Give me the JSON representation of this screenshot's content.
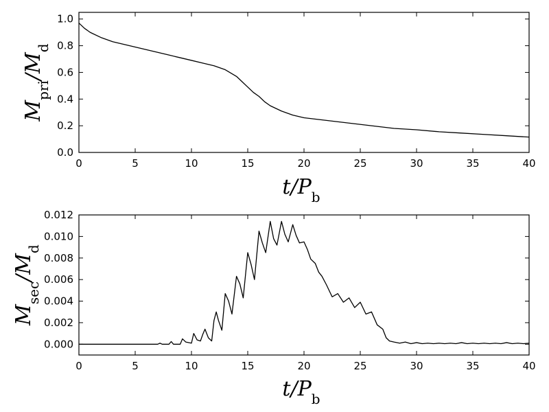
{
  "chart_data": [
    {
      "type": "line",
      "xlabel": {
        "main": "t/P",
        "sub": "b"
      },
      "ylabel": {
        "main": "M",
        "sub": "pri",
        "tail": "/M",
        "sub2": "d"
      },
      "xlim": [
        0,
        40
      ],
      "ylim": [
        0,
        1.05
      ],
      "xticks": [
        "0",
        "5",
        "10",
        "15",
        "20",
        "25",
        "30",
        "35",
        "40"
      ],
      "yticks": [
        "0.0",
        "0.2",
        "0.4",
        "0.6",
        "0.8",
        "1.0"
      ],
      "grid": false,
      "series": [
        {
          "x": [
            0,
            0.5,
            1,
            2,
            3,
            4,
            5,
            6,
            7,
            8,
            9,
            10,
            11,
            12,
            13,
            14,
            14.5,
            15,
            15.5,
            16,
            16.5,
            17,
            17.5,
            18,
            19,
            20,
            22,
            24,
            26,
            28,
            30,
            32,
            34,
            36,
            38,
            40
          ],
          "y": [
            0.97,
            0.93,
            0.9,
            0.86,
            0.83,
            0.81,
            0.79,
            0.77,
            0.75,
            0.73,
            0.71,
            0.69,
            0.67,
            0.65,
            0.62,
            0.57,
            0.53,
            0.49,
            0.45,
            0.42,
            0.38,
            0.35,
            0.33,
            0.31,
            0.28,
            0.26,
            0.24,
            0.22,
            0.2,
            0.18,
            0.17,
            0.155,
            0.145,
            0.135,
            0.125,
            0.115
          ]
        }
      ]
    },
    {
      "type": "line",
      "xlabel": {
        "main": "t/P",
        "sub": "b"
      },
      "ylabel": {
        "main": "M",
        "sub": "sec",
        "tail": "/M",
        "sub2": "d"
      },
      "xlim": [
        0,
        40
      ],
      "ylim": [
        -0.001,
        0.012
      ],
      "xticks": [
        "0",
        "5",
        "10",
        "15",
        "20",
        "25",
        "30",
        "35",
        "40"
      ],
      "yticks": [
        "0.000",
        "0.002",
        "0.004",
        "0.006",
        "0.008",
        "0.010",
        "0.012"
      ],
      "grid": false,
      "series": [
        {
          "x": [
            0,
            6,
            7,
            7.2,
            7.4,
            8,
            8.2,
            8.4,
            9,
            9.2,
            9.5,
            10,
            10.2,
            10.5,
            10.8,
            11,
            11.2,
            11.5,
            11.8,
            12,
            12.2,
            12.4,
            12.7,
            13,
            13.3,
            13.6,
            14,
            14.3,
            14.6,
            15,
            15.3,
            15.6,
            16,
            16.3,
            16.6,
            17,
            17.3,
            17.6,
            18,
            18.3,
            18.6,
            19,
            19.3,
            19.6,
            20,
            20.3,
            20.6,
            21,
            21.3,
            21.6,
            22,
            22.5,
            23,
            23.5,
            24,
            24.5,
            25,
            25.5,
            26,
            26.5,
            27,
            27.3,
            27.6,
            28,
            28.5,
            29,
            29.5,
            30,
            30.5,
            31,
            31.5,
            32,
            32.5,
            33,
            33.5,
            34,
            34.5,
            35,
            35.5,
            36,
            36.5,
            37,
            37.5,
            38,
            38.5,
            39,
            39.5,
            40
          ],
          "y": [
            0,
            0,
            0,
            0.0001,
            0,
            0,
            0.00025,
            0,
            0,
            0.0005,
            0.0002,
            0.0001,
            0.001,
            0.0004,
            0.0003,
            0.0009,
            0.0014,
            0.0006,
            0.0003,
            0.0022,
            0.003,
            0.0022,
            0.0013,
            0.0047,
            0.004,
            0.0028,
            0.0063,
            0.0056,
            0.0043,
            0.0085,
            0.0074,
            0.006,
            0.0105,
            0.0094,
            0.0085,
            0.0114,
            0.0098,
            0.0092,
            0.0114,
            0.0102,
            0.0095,
            0.0111,
            0.0101,
            0.0094,
            0.0095,
            0.0088,
            0.0079,
            0.0075,
            0.0067,
            0.0063,
            0.0055,
            0.0044,
            0.0047,
            0.0039,
            0.0043,
            0.0034,
            0.0039,
            0.0028,
            0.003,
            0.0018,
            0.0014,
            0.0006,
            0.0003,
            0.0002,
            0.0001,
            0.0002,
            5e-05,
            0.00015,
            5e-05,
            0.0001,
            5e-05,
            0.0001,
            5e-05,
            0.0001,
            5e-05,
            0.00015,
            5e-05,
            0.0001,
            5e-05,
            0.0001,
            5e-05,
            0.0001,
            5e-05,
            0.00015,
            5e-05,
            0.0001,
            5e-05,
            0.0001
          ]
        }
      ]
    }
  ]
}
